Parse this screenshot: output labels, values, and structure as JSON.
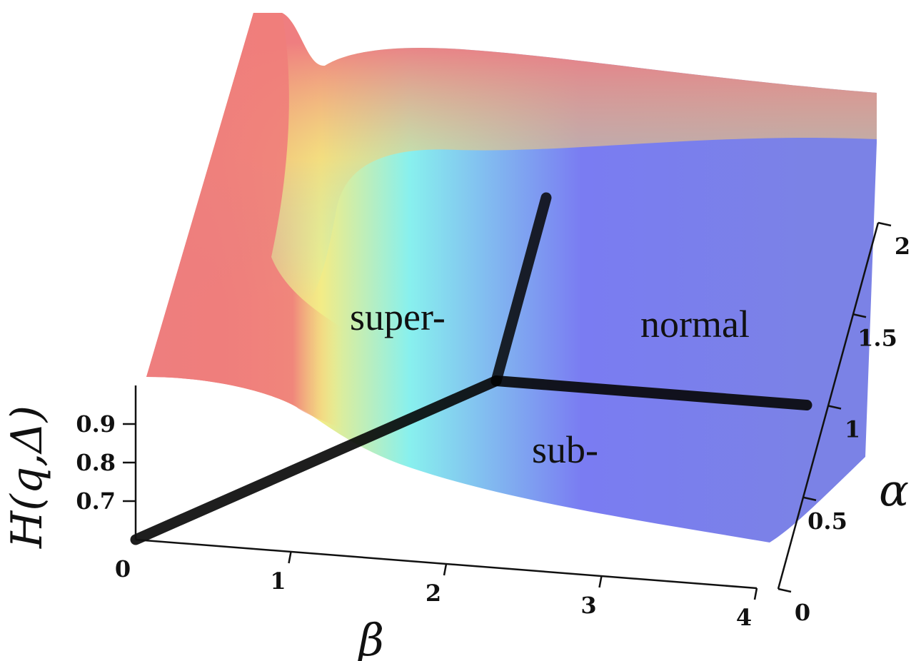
{
  "chart_data": {
    "type": "surface",
    "title": "",
    "z_axis": {
      "label": "H(q,Δ)",
      "ticks": [
        "0.7",
        "0.8",
        "0.9"
      ],
      "range": [
        0.6,
        1.0
      ]
    },
    "x_axis": {
      "label": "β",
      "ticks": [
        "0",
        "1",
        "2",
        "3",
        "4"
      ],
      "range": [
        0,
        4
      ]
    },
    "y_axis": {
      "label": "α",
      "ticks": [
        "0",
        "0.5",
        "1",
        "1.5",
        "2"
      ],
      "range": [
        0,
        2
      ]
    },
    "regions": [
      "super-",
      "normal",
      "sub-"
    ],
    "phase_boundaries": [
      {
        "from": [
          0,
          0
        ],
        "to": [
          2,
          1
        ]
      },
      {
        "from": [
          2,
          1
        ],
        "to": [
          4,
          1
        ]
      },
      {
        "from": [
          2,
          1
        ],
        "to": [
          2,
          2
        ]
      }
    ],
    "colormap": [
      "#f07878",
      "#f5f580",
      "#80f5f5",
      "#7878f0"
    ],
    "grid": false
  }
}
